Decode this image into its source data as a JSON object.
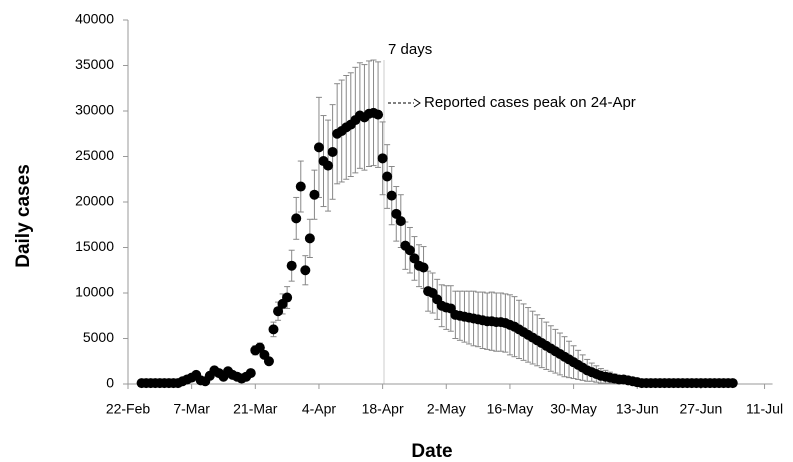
{
  "chart_data": {
    "type": "scatter",
    "xlabel": "Date",
    "ylabel": "Daily cases",
    "annotations": [
      "7 days",
      "Reported cases peak on 24-Apr"
    ],
    "color": "#000000",
    "error_color": "#888888",
    "x": [
      3,
      4,
      5,
      6,
      7,
      8,
      9,
      10,
      11,
      12,
      13,
      14,
      15,
      16,
      17,
      18,
      19,
      20,
      21,
      22,
      23,
      24,
      25,
      26,
      27,
      28,
      29,
      30,
      31,
      32,
      33,
      34,
      35,
      36,
      37,
      38,
      39,
      40,
      41,
      42,
      43,
      44,
      45,
      46,
      47,
      48,
      49,
      50,
      51,
      52,
      53,
      54,
      55,
      56,
      57,
      58,
      59,
      60,
      61,
      62,
      63,
      64,
      65,
      66,
      67,
      68,
      69,
      70,
      71,
      72,
      73,
      74,
      75,
      76,
      77,
      78,
      79,
      80,
      81,
      82,
      83,
      84,
      85,
      86,
      87,
      88,
      89,
      90,
      91,
      92,
      93,
      94,
      95,
      96,
      97,
      98,
      99,
      100,
      101,
      102,
      103,
      104,
      105,
      106,
      107,
      108,
      109,
      110,
      111,
      112,
      113,
      114,
      115,
      116,
      117,
      118,
      119,
      120,
      121,
      122,
      123,
      124,
      125,
      126,
      127,
      128,
      129,
      130,
      131,
      132,
      133
    ],
    "values": [
      100,
      100,
      100,
      100,
      100,
      100,
      100,
      100,
      100,
      300,
      500,
      700,
      1000,
      400,
      300,
      900,
      1500,
      1200,
      800,
      1400,
      1000,
      800,
      600,
      800,
      1200,
      3700,
      4000,
      3200,
      2500,
      6000,
      8000,
      8800,
      9500,
      13000,
      18200,
      21700,
      12500,
      16000,
      20800,
      26000,
      24500,
      24000,
      25500,
      27500,
      27800,
      28200,
      28500,
      29000,
      29500,
      29300,
      29700,
      29800,
      29600,
      24800,
      22800,
      20700,
      18700,
      17900,
      15200,
      14700,
      13800,
      13000,
      12800,
      10200,
      10000,
      9300,
      8600,
      8400,
      8300,
      7600,
      7500,
      7400,
      7300,
      7200,
      7100,
      7000,
      6900,
      6900,
      6800,
      6800,
      6700,
      6500,
      6300,
      6000,
      5700,
      5400,
      5100,
      4800,
      4500,
      4200,
      3900,
      3600,
      3300,
      3000,
      2700,
      2400,
      2100,
      1800,
      1500,
      1300,
      1100,
      900,
      800,
      700,
      600,
      500,
      500,
      400,
      300,
      200,
      100,
      100,
      100,
      100,
      100,
      100,
      100,
      100,
      100,
      100,
      100,
      100,
      100,
      100,
      100,
      100,
      100,
      100,
      100,
      100,
      100
    ],
    "errors": [
      null,
      null,
      null,
      null,
      null,
      null,
      null,
      null,
      null,
      null,
      null,
      null,
      null,
      null,
      null,
      null,
      null,
      null,
      null,
      null,
      null,
      null,
      null,
      null,
      null,
      500,
      500,
      400,
      400,
      800,
      1000,
      1100,
      1200,
      1700,
      2300,
      2800,
      1600,
      2100,
      2700,
      5500,
      5000,
      5000,
      5200,
      5500,
      5600,
      5700,
      5700,
      5800,
      5800,
      5800,
      5800,
      5800,
      5800,
      4000,
      3500,
      3200,
      3000,
      2900,
      2600,
      2500,
      2400,
      2300,
      2300,
      2200,
      2200,
      2200,
      2300,
      2400,
      2500,
      2600,
      2700,
      2800,
      2900,
      3000,
      3000,
      3100,
      3100,
      3200,
      3200,
      3200,
      3200,
      3300,
      3300,
      3200,
      3100,
      3000,
      2900,
      2800,
      2700,
      2600,
      2500,
      2400,
      2300,
      2200,
      2000,
      1800,
      1600,
      1400,
      1200,
      1000,
      900,
      800,
      700,
      600,
      500,
      400,
      300,
      200,
      100,
      100,
      null,
      null,
      null,
      null,
      null,
      null,
      null,
      null,
      null,
      null,
      null,
      null,
      null,
      null,
      null,
      null,
      null,
      null,
      null,
      null,
      null
    ],
    "xlim": [
      0,
      139
    ],
    "xticks": [
      {
        "value": 0,
        "label": "22-Feb"
      },
      {
        "value": 14,
        "label": "7-Mar"
      },
      {
        "value": 28,
        "label": "21-Mar"
      },
      {
        "value": 42,
        "label": "4-Apr"
      },
      {
        "value": 56,
        "label": "18-Apr"
      },
      {
        "value": 70,
        "label": "2-May"
      },
      {
        "value": 84,
        "label": "16-May"
      },
      {
        "value": 98,
        "label": "30-May"
      },
      {
        "value": 112,
        "label": "13-Jun"
      },
      {
        "value": 126,
        "label": "27-Jun"
      },
      {
        "value": 140,
        "label": "11-Jul"
      }
    ],
    "ylim": [
      0,
      40000
    ],
    "yticks": [
      0,
      5000,
      10000,
      15000,
      20000,
      25000,
      30000,
      35000,
      40000
    ]
  }
}
